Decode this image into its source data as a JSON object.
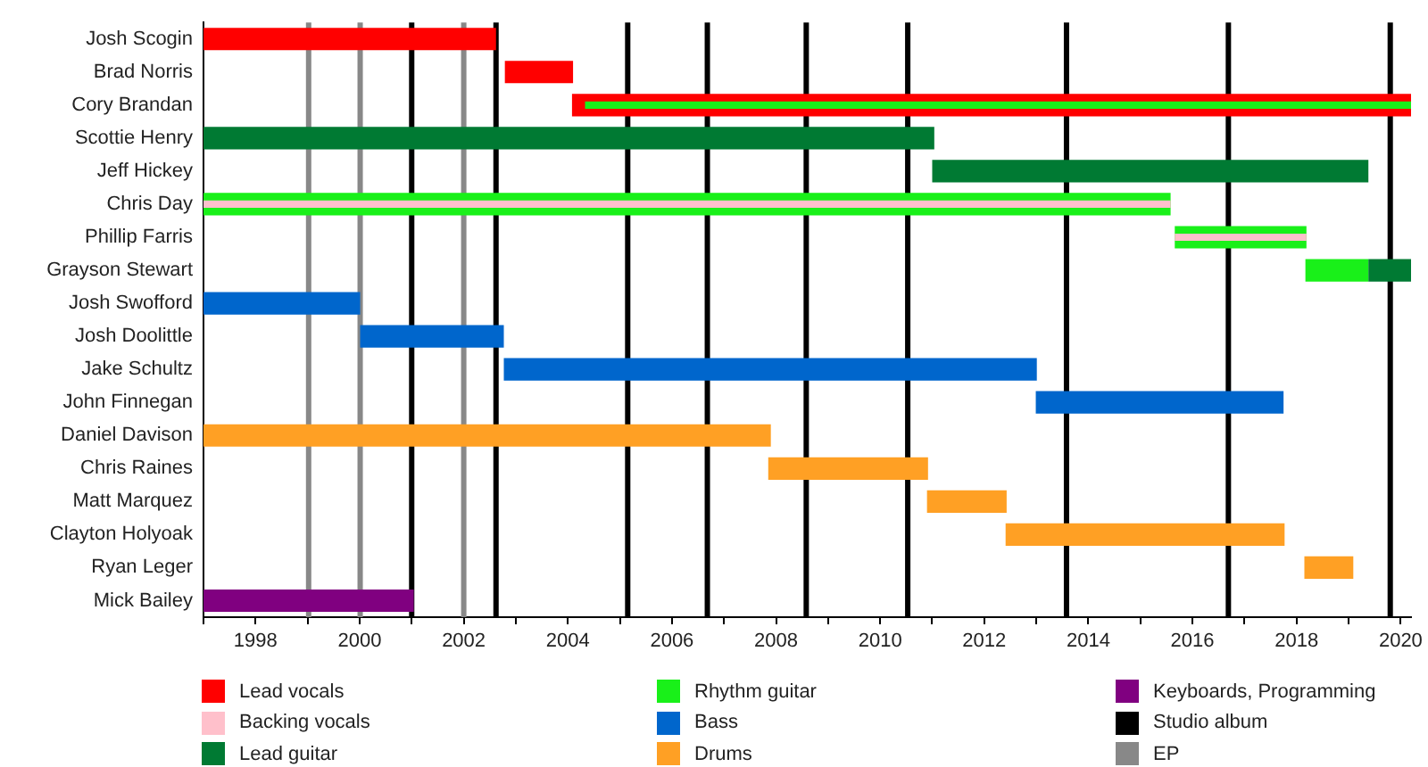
{
  "chart_data": {
    "type": "bar",
    "orientation": "horizontal",
    "grid": false,
    "legend": "bottom",
    "categories": [
      "Josh Scogin",
      "Brad Norris",
      "Cory Brandan",
      "Scottie Henry",
      "Jeff Hickey",
      "Chris Day",
      "Phillip Farris",
      "Grayson Stewart",
      "Josh Swofford",
      "Josh Doolittle",
      "Jake Schultz",
      "John Finnegan",
      "Daniel Davison",
      "Chris Raines",
      "Matt Marquez",
      "Clayton Holyoak",
      "Ryan Leger",
      "Mick Bailey"
    ],
    "xlim": [
      1997,
      2020.2
    ],
    "xticks": [
      {
        "value": 1997,
        "label": null
      },
      1998,
      {
        "value": 1999,
        "label": null
      },
      2000,
      {
        "value": 2001,
        "label": null
      },
      2002,
      {
        "value": 2003,
        "label": null
      },
      2004,
      {
        "value": 2005,
        "label": null
      },
      2006,
      {
        "value": 2007,
        "label": null
      },
      2008,
      {
        "value": 2009,
        "label": null
      },
      2010,
      {
        "value": 2011,
        "label": null
      },
      2012,
      {
        "value": 2013,
        "label": null
      },
      2014,
      {
        "value": 2015,
        "label": null
      },
      2016,
      {
        "value": 2017,
        "label": null
      },
      2018,
      {
        "value": 2019,
        "label": null
      },
      2020
    ],
    "series": [
      {
        "name": "Lead vocals",
        "color": "#ff0000",
        "base": [
          1997,
          2002.79,
          2004.08,
          null,
          null,
          null,
          null,
          null,
          null,
          null,
          null,
          null,
          null,
          null,
          null,
          null,
          null,
          null
        ],
        "values": [
          5.62,
          1.31,
          16.12,
          null,
          null,
          null,
          null,
          null,
          null,
          null,
          null,
          null,
          null,
          null,
          null,
          null,
          null,
          null
        ]
      },
      {
        "name": "Backing vocals",
        "color": "#ffc0cb",
        "base": [
          null,
          null,
          null,
          null,
          null,
          1997,
          2015.66,
          null,
          null,
          null,
          null,
          null,
          null,
          null,
          null,
          null,
          null,
          null
        ],
        "values": [
          null,
          null,
          null,
          null,
          null,
          18.58,
          2.53,
          null,
          null,
          null,
          null,
          null,
          null,
          null,
          null,
          null,
          null,
          null
        ]
      },
      {
        "name": "Lead guitar",
        "color": "#007a33",
        "base": [
          null,
          null,
          null,
          1997,
          2011.0,
          null,
          null,
          2019.38,
          null,
          null,
          null,
          null,
          null,
          null,
          null,
          null,
          null,
          null
        ],
        "values": [
          null,
          null,
          null,
          14.04,
          8.38,
          null,
          null,
          0.82,
          null,
          null,
          null,
          null,
          null,
          null,
          null,
          null,
          null,
          null
        ]
      },
      {
        "name": "Rhythm guitar",
        "color": "#19f019",
        "base": [
          null,
          null,
          2004.33,
          null,
          null,
          1997,
          2015.66,
          2018.17,
          null,
          null,
          null,
          null,
          null,
          null,
          null,
          null,
          null,
          null
        ],
        "values": [
          null,
          null,
          15.87,
          null,
          null,
          18.58,
          2.53,
          1.21,
          null,
          null,
          null,
          null,
          null,
          null,
          null,
          null,
          null,
          null
        ]
      },
      {
        "name": "Bass",
        "color": "#0066cc",
        "base": [
          null,
          null,
          null,
          null,
          null,
          null,
          null,
          null,
          1997,
          2000.01,
          2002.77,
          2012.99,
          null,
          null,
          null,
          null,
          null,
          null
        ],
        "values": [
          null,
          null,
          null,
          null,
          null,
          null,
          null,
          null,
          3.01,
          2.76,
          10.24,
          4.76,
          null,
          null,
          null,
          null,
          null,
          null
        ]
      },
      {
        "name": "Drums",
        "color": "#ffa024",
        "base": [
          null,
          null,
          null,
          null,
          null,
          null,
          null,
          null,
          null,
          null,
          null,
          null,
          1997,
          2007.85,
          2010.9,
          2012.41,
          2018.15,
          null
        ],
        "values": [
          null,
          null,
          null,
          null,
          null,
          null,
          null,
          null,
          null,
          null,
          null,
          null,
          10.9,
          3.07,
          1.53,
          5.36,
          0.94,
          null
        ]
      },
      {
        "name": "Keyboards, Programming",
        "color": "#800080",
        "base": [
          null,
          null,
          null,
          null,
          null,
          null,
          null,
          null,
          null,
          null,
          null,
          null,
          null,
          null,
          null,
          null,
          null,
          1997
        ],
        "values": [
          null,
          null,
          null,
          null,
          null,
          null,
          null,
          null,
          null,
          null,
          null,
          null,
          null,
          null,
          null,
          null,
          null,
          4.04
        ]
      }
    ],
    "ref_lines": [
      {
        "axis": "x",
        "value": 2001.0,
        "label": "Studio album",
        "color": "#000000"
      },
      {
        "axis": "x",
        "value": 1999.02,
        "label": "EP",
        "color": "#888888"
      },
      {
        "axis": "x",
        "value": 2000.01,
        "color": "#888888"
      },
      {
        "axis": "x",
        "value": 2002.0,
        "color": "#888888"
      },
      {
        "axis": "x",
        "value": 2002.62,
        "color": "#000000"
      },
      {
        "axis": "x",
        "value": 2005.15,
        "color": "#000000"
      },
      {
        "axis": "x",
        "value": 2006.68,
        "color": "#000000"
      },
      {
        "axis": "x",
        "value": 2008.58,
        "color": "#000000"
      },
      {
        "axis": "x",
        "value": 2010.53,
        "color": "#000000"
      },
      {
        "axis": "x",
        "value": 2013.58,
        "color": "#000000"
      },
      {
        "axis": "x",
        "value": 2016.69,
        "color": "#000000"
      },
      {
        "axis": "x",
        "value": 2019.8,
        "color": "#000000"
      }
    ]
  }
}
